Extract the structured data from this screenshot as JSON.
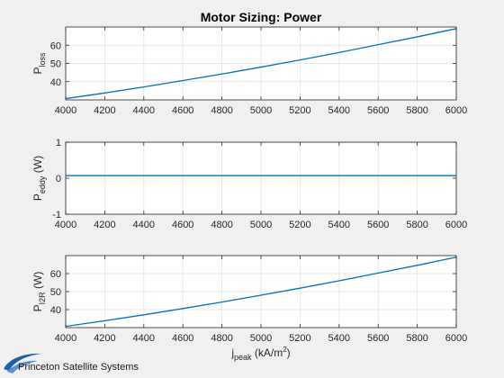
{
  "figure": {
    "background": "#f0f0f0",
    "axes_background": "#ffffff",
    "line_color": "#0072bd",
    "grid_color": "#e1e1e1"
  },
  "chart_data": [
    {
      "type": "line",
      "title": "Motor Sizing: Power",
      "ylabel": {
        "base": "P",
        "sub": "loss",
        "unit": ""
      },
      "xlabel": "",
      "xlim": [
        4000,
        6000
      ],
      "ylim": [
        30,
        70
      ],
      "xticks": [
        4000,
        4200,
        4400,
        4600,
        4800,
        5000,
        5200,
        5400,
        5600,
        5800,
        6000
      ],
      "yticks": [
        40,
        50,
        60
      ],
      "grid": true,
      "series": [
        {
          "x": [
            4000,
            4200,
            4400,
            4600,
            4800,
            5000,
            5200,
            5400,
            5600,
            5800,
            6000
          ],
          "y": [
            30.7,
            33.8,
            37.1,
            40.6,
            44.2,
            48.0,
            51.9,
            56.0,
            60.3,
            64.6,
            69.1
          ]
        }
      ]
    },
    {
      "type": "line",
      "title": "",
      "ylabel": {
        "base": "P",
        "sub": "eddy",
        "unit": " (W)"
      },
      "xlabel": "",
      "xlim": [
        4000,
        6000
      ],
      "ylim": [
        -1,
        1
      ],
      "xticks": [
        4000,
        4200,
        4400,
        4600,
        4800,
        5000,
        5200,
        5400,
        5600,
        5800,
        6000
      ],
      "yticks": [
        -1,
        0,
        1
      ],
      "grid": true,
      "series": [
        {
          "x": [
            4000,
            6000
          ],
          "y": [
            0.07,
            0.07
          ]
        }
      ]
    },
    {
      "type": "line",
      "title": "",
      "ylabel": {
        "base": "P",
        "sub": "I2R",
        "unit": " (W)"
      },
      "xlabel": {
        "base": "j",
        "sub": "peak",
        "unit": " (kA/m",
        "sup": "2",
        "close": ")"
      },
      "xlim": [
        4000,
        6000
      ],
      "ylim": [
        30,
        70
      ],
      "xticks": [
        4000,
        4200,
        4400,
        4600,
        4800,
        5000,
        5200,
        5400,
        5600,
        5800,
        6000
      ],
      "yticks": [
        40,
        50,
        60
      ],
      "grid": true,
      "series": [
        {
          "x": [
            4000,
            4200,
            4400,
            4600,
            4800,
            5000,
            5200,
            5400,
            5600,
            5800,
            6000
          ],
          "y": [
            30.7,
            33.8,
            37.1,
            40.6,
            44.2,
            48.0,
            51.9,
            56.0,
            60.3,
            64.6,
            69.1
          ]
        }
      ]
    }
  ],
  "logo": {
    "text": "Princeton Satellite Systems",
    "icon": "swoosh-logo-icon"
  }
}
